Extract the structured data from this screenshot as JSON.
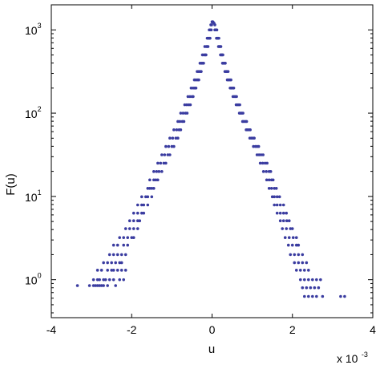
{
  "chart_data": {
    "type": "scatter",
    "title": "",
    "xlabel": "u",
    "ylabel": "F(u)",
    "x_multiplier_label": {
      "prefix": "x 10",
      "exponent": "-3"
    },
    "xlim": [
      -4,
      4
    ],
    "ylim": [
      0.35,
      2000
    ],
    "y_scale": "log",
    "grid": false,
    "legend": "none",
    "marker_color": "#3a3ca0",
    "xticks": [
      {
        "value": -4,
        "label": "-4"
      },
      {
        "value": -2,
        "label": "-2"
      },
      {
        "value": 0,
        "label": "0"
      },
      {
        "value": 2,
        "label": "2"
      },
      {
        "value": 4,
        "label": "4"
      }
    ],
    "yticks": [
      {
        "value": 1,
        "base": "10",
        "exp": "0"
      },
      {
        "value": 10,
        "base": "10",
        "exp": "1"
      },
      {
        "value": 100,
        "base": "10",
        "exp": "2"
      },
      {
        "value": 1000,
        "base": "10",
        "exp": "3"
      }
    ],
    "series": [
      {
        "points": [
          [
            -3.35,
            0.85
          ],
          [
            -3.05,
            0.85
          ],
          [
            -2.95,
            0.85
          ],
          [
            -2.9,
            0.85
          ],
          [
            -2.85,
            0.85
          ],
          [
            -2.8,
            0.85
          ],
          [
            -2.75,
            0.85
          ],
          [
            -2.7,
            0.85
          ],
          [
            -2.6,
            0.85
          ],
          [
            -2.4,
            0.85
          ],
          [
            -2.95,
            1.0
          ],
          [
            -2.85,
            1.0
          ],
          [
            -2.8,
            1.0
          ],
          [
            -2.7,
            1.0
          ],
          [
            -2.65,
            1.0
          ],
          [
            -2.55,
            1.0
          ],
          [
            -2.45,
            1.0
          ],
          [
            -2.3,
            1.0
          ],
          [
            -2.2,
            1.0
          ],
          [
            -2.85,
            1.3
          ],
          [
            -2.75,
            1.3
          ],
          [
            -2.6,
            1.3
          ],
          [
            -2.5,
            1.3
          ],
          [
            -2.45,
            1.3
          ],
          [
            -2.35,
            1.3
          ],
          [
            -2.25,
            1.3
          ],
          [
            -2.15,
            1.3
          ],
          [
            -2.7,
            1.6
          ],
          [
            -2.6,
            1.6
          ],
          [
            -2.5,
            1.6
          ],
          [
            -2.4,
            1.6
          ],
          [
            -2.3,
            1.6
          ],
          [
            -2.25,
            1.6
          ],
          [
            -2.55,
            2.0
          ],
          [
            -2.45,
            2.0
          ],
          [
            -2.35,
            2.0
          ],
          [
            -2.25,
            2.0
          ],
          [
            -2.15,
            2.0
          ],
          [
            -2.45,
            2.6
          ],
          [
            -2.35,
            2.6
          ],
          [
            -2.2,
            2.6
          ],
          [
            -2.1,
            2.6
          ],
          [
            -2.3,
            3.2
          ],
          [
            -2.2,
            3.2
          ],
          [
            -2.1,
            3.2
          ],
          [
            -2.0,
            3.2
          ],
          [
            -1.95,
            3.2
          ],
          [
            -2.15,
            4.1
          ],
          [
            -2.05,
            4.1
          ],
          [
            -1.95,
            4.1
          ],
          [
            -1.85,
            4.1
          ],
          [
            -2.05,
            5.1
          ],
          [
            -1.95,
            5.1
          ],
          [
            -1.85,
            5.1
          ],
          [
            -1.8,
            5.1
          ],
          [
            -1.95,
            6.3
          ],
          [
            -1.85,
            6.3
          ],
          [
            -1.75,
            6.3
          ],
          [
            -1.7,
            6.3
          ],
          [
            -1.85,
            7.9
          ],
          [
            -1.75,
            7.9
          ],
          [
            -1.7,
            7.9
          ],
          [
            -1.6,
            7.9
          ],
          [
            -1.75,
            9.9
          ],
          [
            -1.65,
            9.9
          ],
          [
            -1.6,
            9.9
          ],
          [
            -1.5,
            9.9
          ],
          [
            -1.6,
            12.5
          ],
          [
            -1.55,
            12.5
          ],
          [
            -1.5,
            12.5
          ],
          [
            -1.45,
            12.5
          ],
          [
            -1.55,
            15.8
          ],
          [
            -1.45,
            15.8
          ],
          [
            -1.4,
            15.8
          ],
          [
            -1.35,
            15.8
          ],
          [
            -1.45,
            19.9
          ],
          [
            -1.38,
            19.9
          ],
          [
            -1.32,
            19.9
          ],
          [
            -1.25,
            19.9
          ],
          [
            -1.35,
            25.1
          ],
          [
            -1.28,
            25.1
          ],
          [
            -1.2,
            25.1
          ],
          [
            -1.15,
            25.1
          ],
          [
            -1.25,
            31.6
          ],
          [
            -1.18,
            31.6
          ],
          [
            -1.1,
            31.6
          ],
          [
            -1.05,
            31.6
          ],
          [
            -1.15,
            39.8
          ],
          [
            -1.08,
            39.8
          ],
          [
            -1.0,
            39.8
          ],
          [
            -0.95,
            39.8
          ],
          [
            -1.05,
            50.1
          ],
          [
            -0.98,
            50.1
          ],
          [
            -0.9,
            50.1
          ],
          [
            -0.85,
            50.1
          ],
          [
            -0.95,
            63.1
          ],
          [
            -0.88,
            63.1
          ],
          [
            -0.82,
            63.1
          ],
          [
            -0.78,
            63.1
          ],
          [
            -0.85,
            79.4
          ],
          [
            -0.8,
            79.4
          ],
          [
            -0.74,
            79.4
          ],
          [
            -0.7,
            79.4
          ],
          [
            -0.78,
            100
          ],
          [
            -0.72,
            100
          ],
          [
            -0.66,
            100
          ],
          [
            -0.62,
            100
          ],
          [
            -0.68,
            126
          ],
          [
            -0.63,
            126
          ],
          [
            -0.58,
            126
          ],
          [
            -0.54,
            126
          ],
          [
            -0.6,
            158
          ],
          [
            -0.55,
            158
          ],
          [
            -0.5,
            158
          ],
          [
            -0.47,
            158
          ],
          [
            -0.52,
            200
          ],
          [
            -0.47,
            200
          ],
          [
            -0.43,
            200
          ],
          [
            -0.4,
            200
          ],
          [
            -0.44,
            251
          ],
          [
            -0.4,
            251
          ],
          [
            -0.36,
            251
          ],
          [
            -0.33,
            251
          ],
          [
            -0.37,
            316
          ],
          [
            -0.33,
            316
          ],
          [
            -0.29,
            316
          ],
          [
            -0.27,
            316
          ],
          [
            -0.3,
            398
          ],
          [
            -0.26,
            398
          ],
          [
            -0.23,
            398
          ],
          [
            -0.21,
            398
          ],
          [
            -0.24,
            501
          ],
          [
            -0.2,
            501
          ],
          [
            -0.17,
            501
          ],
          [
            -0.15,
            501
          ],
          [
            -0.18,
            631
          ],
          [
            -0.14,
            631
          ],
          [
            -0.12,
            631
          ],
          [
            -0.1,
            631
          ],
          [
            -0.12,
            794
          ],
          [
            -0.09,
            794
          ],
          [
            -0.07,
            794
          ],
          [
            -0.05,
            794
          ],
          [
            -0.07,
            1000
          ],
          [
            -0.05,
            1000
          ],
          [
            -0.03,
            1000
          ],
          [
            -0.02,
            1000
          ],
          [
            -0.03,
            1150
          ],
          [
            -0.01,
            1150
          ],
          [
            0.0,
            1250
          ],
          [
            0.01,
            1250
          ],
          [
            0.02,
            1250
          ],
          [
            0.03,
            1230
          ],
          [
            0.05,
            1200
          ],
          [
            0.07,
            1150
          ],
          [
            0.07,
            1000
          ],
          [
            0.09,
            1000
          ],
          [
            0.1,
            1000
          ],
          [
            0.12,
            1000
          ],
          [
            0.11,
            794
          ],
          [
            0.13,
            794
          ],
          [
            0.15,
            794
          ],
          [
            0.17,
            794
          ],
          [
            0.16,
            631
          ],
          [
            0.18,
            631
          ],
          [
            0.2,
            631
          ],
          [
            0.22,
            631
          ],
          [
            0.21,
            501
          ],
          [
            0.23,
            501
          ],
          [
            0.25,
            501
          ],
          [
            0.27,
            501
          ],
          [
            0.26,
            398
          ],
          [
            0.28,
            398
          ],
          [
            0.31,
            398
          ],
          [
            0.33,
            398
          ],
          [
            0.32,
            316
          ],
          [
            0.35,
            316
          ],
          [
            0.37,
            316
          ],
          [
            0.4,
            316
          ],
          [
            0.38,
            251
          ],
          [
            0.41,
            251
          ],
          [
            0.44,
            251
          ],
          [
            0.47,
            251
          ],
          [
            0.45,
            200
          ],
          [
            0.48,
            200
          ],
          [
            0.51,
            200
          ],
          [
            0.54,
            200
          ],
          [
            0.52,
            158
          ],
          [
            0.55,
            158
          ],
          [
            0.58,
            158
          ],
          [
            0.61,
            158
          ],
          [
            0.6,
            126
          ],
          [
            0.63,
            126
          ],
          [
            0.66,
            126
          ],
          [
            0.69,
            126
          ],
          [
            0.68,
            100
          ],
          [
            0.71,
            100
          ],
          [
            0.74,
            100
          ],
          [
            0.77,
            100
          ],
          [
            0.76,
            79.4
          ],
          [
            0.79,
            79.4
          ],
          [
            0.83,
            79.4
          ],
          [
            0.86,
            79.4
          ],
          [
            0.85,
            63.1
          ],
          [
            0.88,
            63.1
          ],
          [
            0.92,
            63.1
          ],
          [
            0.95,
            63.1
          ],
          [
            0.94,
            50.1
          ],
          [
            0.98,
            50.1
          ],
          [
            1.02,
            50.1
          ],
          [
            1.05,
            50.1
          ],
          [
            1.03,
            39.8
          ],
          [
            1.08,
            39.8
          ],
          [
            1.12,
            39.8
          ],
          [
            1.16,
            39.8
          ],
          [
            1.12,
            31.6
          ],
          [
            1.17,
            31.6
          ],
          [
            1.22,
            31.6
          ],
          [
            1.27,
            31.6
          ],
          [
            1.2,
            25.1
          ],
          [
            1.26,
            25.1
          ],
          [
            1.32,
            25.1
          ],
          [
            1.37,
            25.1
          ],
          [
            1.28,
            19.9
          ],
          [
            1.35,
            19.9
          ],
          [
            1.42,
            19.9
          ],
          [
            1.46,
            19.9
          ],
          [
            1.36,
            15.8
          ],
          [
            1.42,
            15.8
          ],
          [
            1.48,
            15.8
          ],
          [
            1.52,
            15.8
          ],
          [
            1.42,
            12.5
          ],
          [
            1.48,
            12.5
          ],
          [
            1.55,
            12.5
          ],
          [
            1.6,
            12.5
          ],
          [
            1.5,
            9.9
          ],
          [
            1.55,
            9.9
          ],
          [
            1.62,
            9.9
          ],
          [
            1.68,
            9.9
          ],
          [
            1.55,
            7.9
          ],
          [
            1.62,
            7.9
          ],
          [
            1.7,
            7.9
          ],
          [
            1.78,
            7.9
          ],
          [
            1.62,
            6.3
          ],
          [
            1.7,
            6.3
          ],
          [
            1.78,
            6.3
          ],
          [
            1.85,
            6.3
          ],
          [
            1.7,
            5.1
          ],
          [
            1.78,
            5.1
          ],
          [
            1.86,
            5.1
          ],
          [
            1.92,
            5.1
          ],
          [
            1.75,
            4.1
          ],
          [
            1.85,
            4.1
          ],
          [
            1.95,
            4.1
          ],
          [
            2.0,
            4.1
          ],
          [
            1.82,
            3.2
          ],
          [
            1.92,
            3.2
          ],
          [
            2.02,
            3.2
          ],
          [
            2.1,
            3.2
          ],
          [
            1.9,
            2.6
          ],
          [
            2.0,
            2.6
          ],
          [
            2.1,
            2.6
          ],
          [
            2.15,
            2.6
          ],
          [
            1.95,
            2.0
          ],
          [
            2.05,
            2.0
          ],
          [
            2.15,
            2.0
          ],
          [
            2.25,
            2.0
          ],
          [
            2.05,
            1.6
          ],
          [
            2.15,
            1.6
          ],
          [
            2.25,
            1.6
          ],
          [
            2.35,
            1.6
          ],
          [
            2.1,
            1.3
          ],
          [
            2.2,
            1.3
          ],
          [
            2.3,
            1.3
          ],
          [
            2.4,
            1.3
          ],
          [
            2.2,
            1.0
          ],
          [
            2.3,
            1.0
          ],
          [
            2.4,
            1.0
          ],
          [
            2.5,
            1.0
          ],
          [
            2.6,
            1.0
          ],
          [
            2.7,
            1.0
          ],
          [
            2.25,
            0.8
          ],
          [
            2.35,
            0.8
          ],
          [
            2.45,
            0.8
          ],
          [
            2.55,
            0.8
          ],
          [
            2.65,
            0.8
          ],
          [
            2.3,
            0.63
          ],
          [
            2.4,
            0.63
          ],
          [
            2.5,
            0.63
          ],
          [
            2.6,
            0.63
          ],
          [
            2.75,
            0.63
          ],
          [
            3.2,
            0.63
          ],
          [
            3.3,
            0.63
          ]
        ]
      }
    ]
  }
}
